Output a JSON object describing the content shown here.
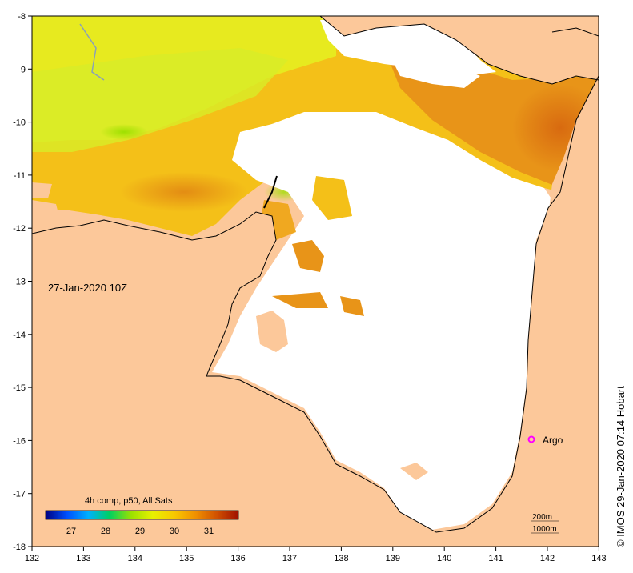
{
  "map": {
    "timestamp_label": "27-Jan-2020 10Z",
    "product_label": "4h comp, p50, All Sats",
    "argo_label": "Argo",
    "depth_label_1": "200m",
    "depth_label_2": "1000m",
    "credit": "© IMOS 29-Jan-2020 07:14 Hobart",
    "lon_ticks": [
      "132",
      "133",
      "134",
      "135",
      "136",
      "137",
      "138",
      "139",
      "140",
      "141",
      "142",
      "143"
    ],
    "lat_ticks": [
      "-8",
      "-9",
      "-10",
      "-11",
      "-12",
      "-13",
      "-14",
      "-15",
      "-16",
      "-17",
      "-18"
    ],
    "colorbar_ticks": [
      "27",
      "28",
      "29",
      "30",
      "31"
    ],
    "colors": {
      "land": "#fcc89a",
      "no_data": "#ffffff",
      "argo_marker": "#ff00ff",
      "sst_gradient": [
        "#000080",
        "#0050ff",
        "#00b0ff",
        "#00d060",
        "#9be000",
        "#e8f000",
        "#f8c800",
        "#f09000",
        "#d05000",
        "#a01000"
      ]
    }
  }
}
